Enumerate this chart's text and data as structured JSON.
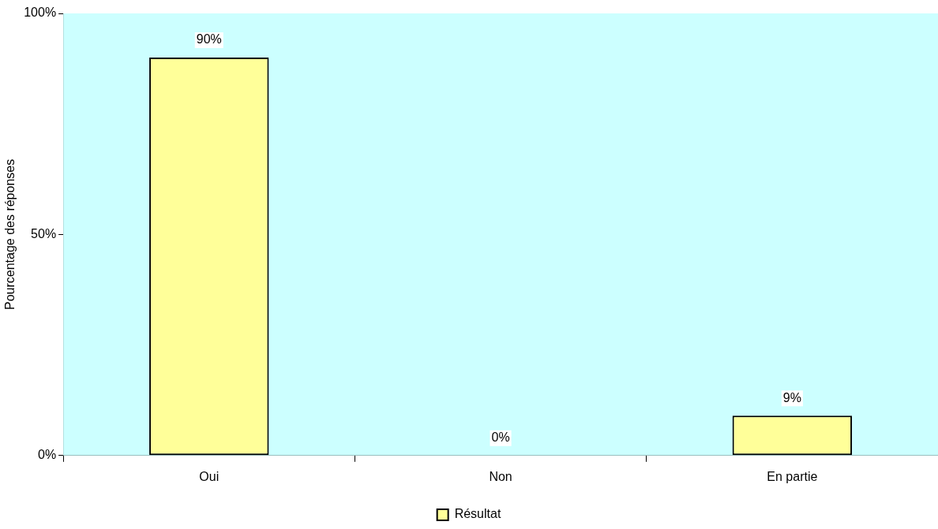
{
  "chart_data": {
    "type": "bar",
    "ylabel": "Pourcentage des réponses",
    "categories": [
      "Oui",
      "Non",
      "En partie"
    ],
    "series": [
      {
        "name": "Résultat",
        "color": "#ffff99",
        "values": [
          90,
          0,
          9
        ],
        "value_labels": [
          "90%",
          "0%",
          "9%"
        ]
      }
    ],
    "ylim": [
      0,
      100
    ],
    "yticks": [
      {
        "value": 0,
        "label": "0%"
      },
      {
        "value": 50,
        "label": "50%"
      },
      {
        "value": 100,
        "label": "100%"
      }
    ],
    "legend": "bottom"
  }
}
